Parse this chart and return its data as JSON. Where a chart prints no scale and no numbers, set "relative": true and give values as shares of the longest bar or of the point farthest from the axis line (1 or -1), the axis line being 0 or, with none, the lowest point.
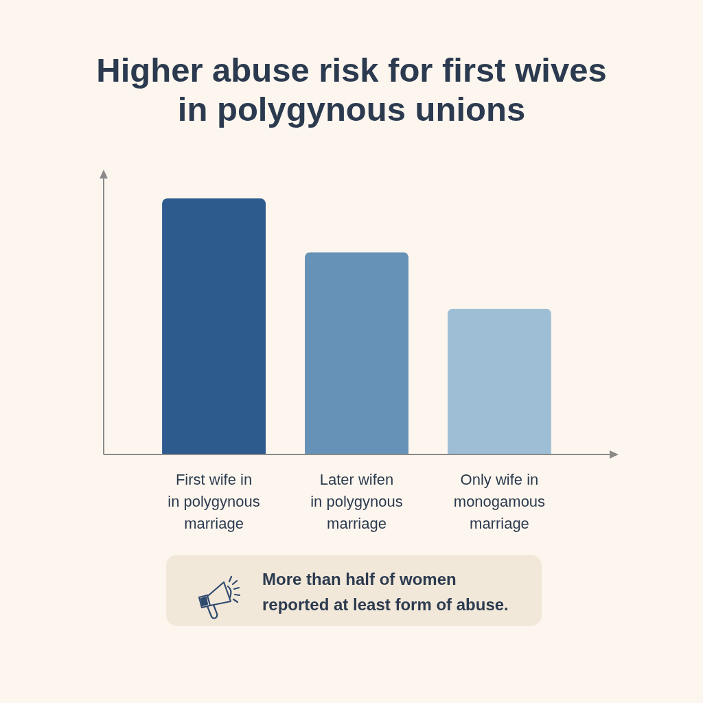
{
  "chart_data": {
    "type": "bar",
    "title": "Higher abuse risk for first wives in polygynous unions",
    "categories": [
      "First wife in in polygynous marriage",
      "Later wifen in polygynous marriage",
      "Only wife in monogamous marriage"
    ],
    "values": [
      1,
      0.79,
      0.57
    ],
    "colors": [
      "#2e5b8e",
      "#6692b7",
      "#9ebed5"
    ],
    "relative": true,
    "annotations": [
      "More than half of women reported at least form of abuse."
    ]
  }
}
